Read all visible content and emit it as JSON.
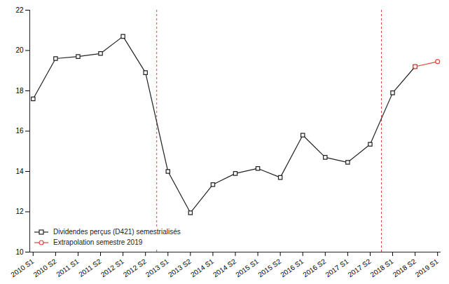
{
  "chart_data": {
    "type": "line",
    "categories": [
      "2010 S1",
      "2010 S2",
      "2011 S1",
      "2011 S2",
      "2012 S1",
      "2012 S2",
      "2013 S1",
      "2013 S2",
      "2014 S1",
      "2014 S2",
      "2015 S1",
      "2015 S2",
      "2016 S1",
      "2016 S2",
      "2017 S1",
      "2017 S2",
      "2018 S1",
      "2018 S2",
      "2019 S1"
    ],
    "series": [
      {
        "name": "Dividendes perçus (D421) semestrialisés",
        "color": "#222222",
        "marker": "square",
        "line_style": "solid",
        "values": [
          17.6,
          19.6,
          19.7,
          19.85,
          20.7,
          18.9,
          14.0,
          11.95,
          13.35,
          13.9,
          14.15,
          13.7,
          15.8,
          14.7,
          14.45,
          15.35,
          17.9,
          19.2,
          null
        ]
      },
      {
        "name": "Extrapolation semestre 2019",
        "color": "#e0443a",
        "marker": "circle",
        "line_style": "solid",
        "values": [
          null,
          null,
          null,
          null,
          null,
          null,
          null,
          null,
          null,
          null,
          null,
          null,
          null,
          null,
          null,
          null,
          null,
          19.2,
          19.45
        ]
      }
    ],
    "vertical_lines": [
      {
        "after": "2012 S2",
        "color": "#e0443a",
        "line_style": "dashed"
      },
      {
        "after": "2017 S2",
        "color": "#e0443a",
        "line_style": "dashed"
      }
    ],
    "ylim": [
      10,
      22
    ],
    "yticks": [
      10,
      12,
      14,
      16,
      18,
      20,
      22
    ],
    "grid": false,
    "legend": "bottom-left"
  }
}
